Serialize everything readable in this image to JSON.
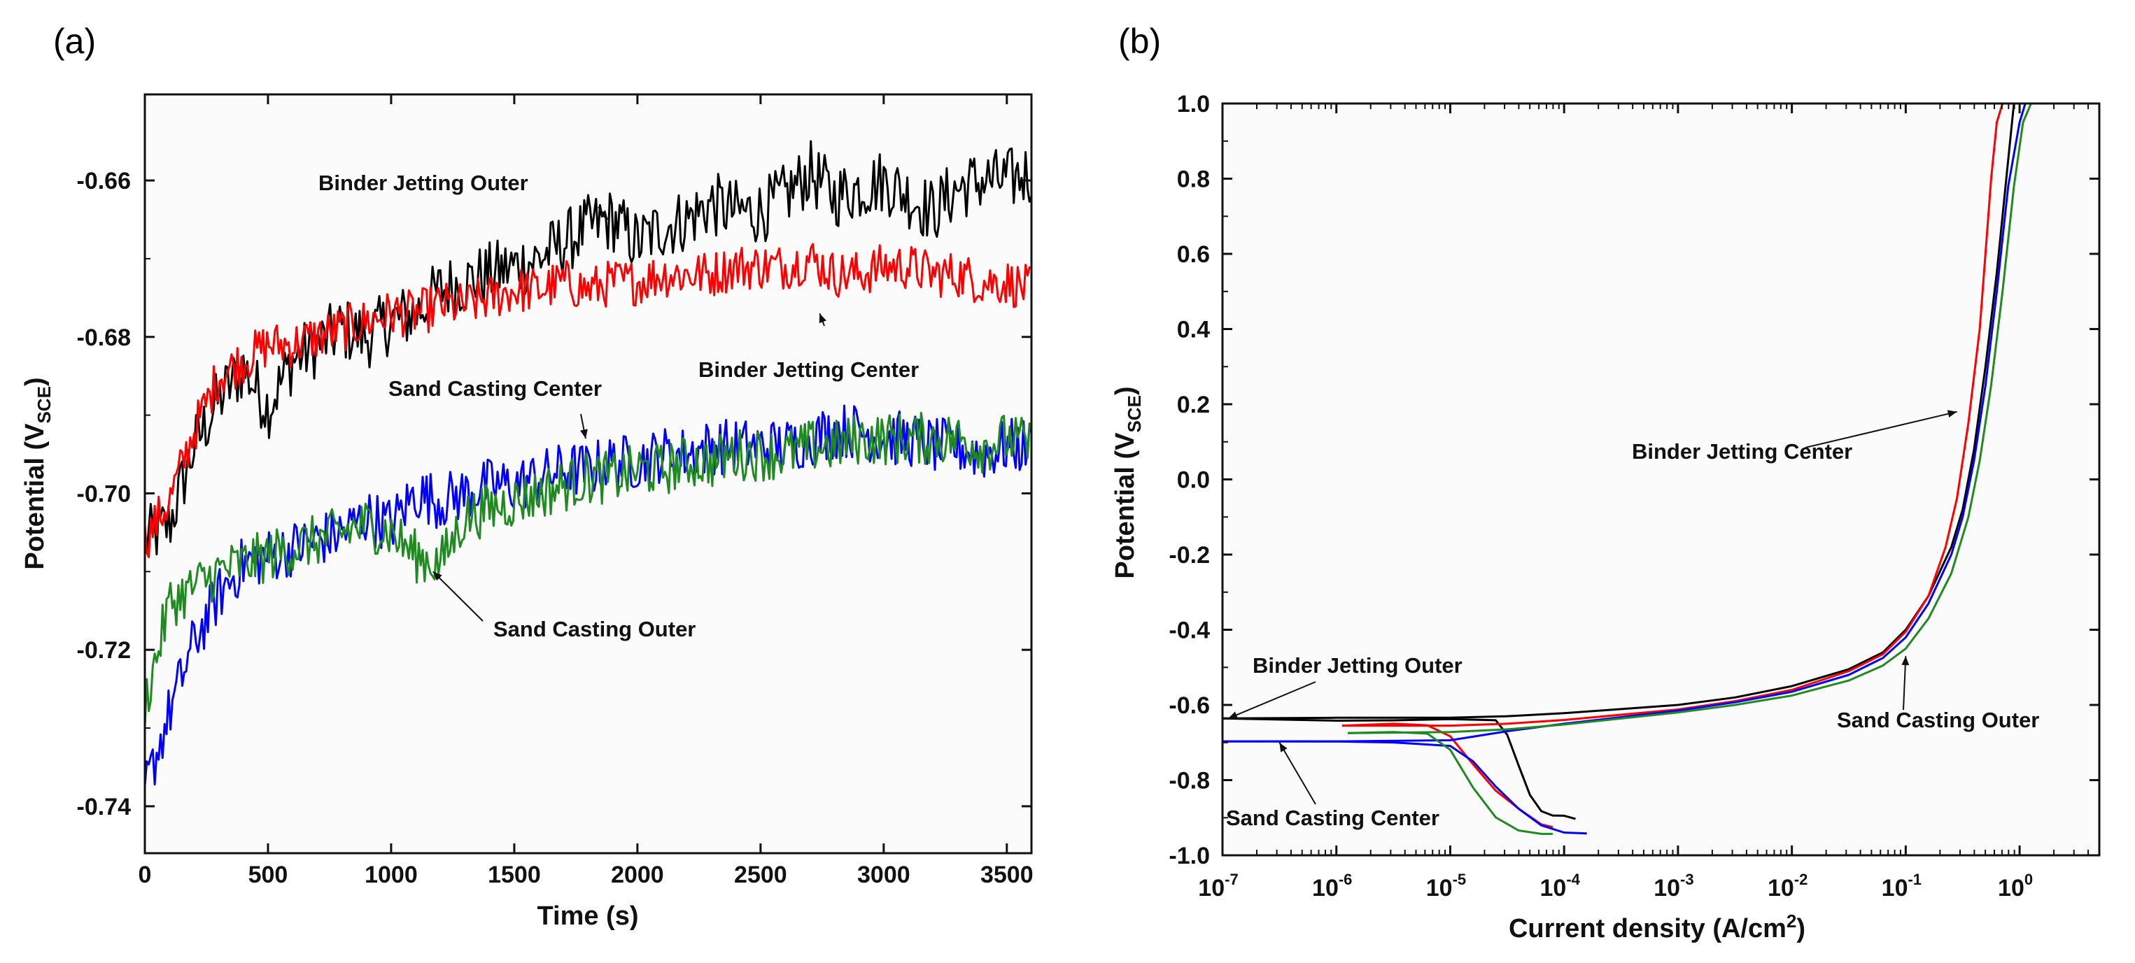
{
  "chart_data": [
    {
      "panel_label": "(a)",
      "type": "line",
      "title": "",
      "xlabel": "Time (s)",
      "ylabel_main": "Potential (V",
      "ylabel_sub": "SCE",
      "ylabel_end": ")",
      "xlim": [
        0,
        3600
      ],
      "ylim": [
        -0.746,
        -0.649
      ],
      "x_ticks": [
        0,
        500,
        1000,
        1500,
        2000,
        2500,
        3000,
        3500
      ],
      "x_tick_labels": [
        "0",
        "500",
        "1000",
        "1500",
        "2000",
        "2500",
        "3000",
        "3500"
      ],
      "y_ticks": [
        -0.74,
        -0.72,
        -0.7,
        -0.68,
        -0.66
      ],
      "y_tick_labels": [
        "-0.74",
        "-0.72",
        "-0.70",
        "-0.68",
        "-0.66"
      ],
      "grid": false,
      "series": [
        {
          "name": "Binder Jetting Outer",
          "color": "#000000",
          "x": [
            0,
            100,
            200,
            300,
            400,
            500,
            600,
            700,
            800,
            900,
            1000,
            1100,
            1200,
            1300,
            1400,
            1500,
            1600,
            1700,
            1800,
            1900,
            2000,
            2100,
            2200,
            2300,
            2400,
            2500,
            2600,
            2700,
            2800,
            2900,
            3000,
            3100,
            3200,
            3300,
            3400,
            3500,
            3600
          ],
          "y": [
            -0.706,
            -0.704,
            -0.694,
            -0.688,
            -0.684,
            -0.689,
            -0.683,
            -0.681,
            -0.679,
            -0.68,
            -0.678,
            -0.677,
            -0.674,
            -0.673,
            -0.672,
            -0.671,
            -0.67,
            -0.668,
            -0.666,
            -0.665,
            -0.668,
            -0.666,
            -0.665,
            -0.663,
            -0.664,
            -0.664,
            -0.662,
            -0.659,
            -0.662,
            -0.661,
            -0.66,
            -0.662,
            -0.664,
            -0.661,
            -0.66,
            -0.66,
            -0.659
          ]
        },
        {
          "name": "Binder Jetting Center",
          "color": "#ff0000",
          "x": [
            0,
            100,
            200,
            300,
            400,
            500,
            600,
            700,
            800,
            900,
            1000,
            1100,
            1200,
            1300,
            1400,
            1500,
            1600,
            1700,
            1800,
            1900,
            2000,
            2100,
            2200,
            2300,
            2400,
            2500,
            2600,
            2700,
            2800,
            2900,
            3000,
            3100,
            3200,
            3300,
            3400,
            3500,
            3600
          ],
          "y": [
            -0.706,
            -0.701,
            -0.692,
            -0.685,
            -0.683,
            -0.681,
            -0.681,
            -0.68,
            -0.679,
            -0.678,
            -0.677,
            -0.677,
            -0.676,
            -0.676,
            -0.675,
            -0.674,
            -0.674,
            -0.673,
            -0.674,
            -0.673,
            -0.673,
            -0.672,
            -0.672,
            -0.672,
            -0.671,
            -0.671,
            -0.671,
            -0.67,
            -0.672,
            -0.672,
            -0.671,
            -0.671,
            -0.672,
            -0.672,
            -0.673,
            -0.673,
            -0.674
          ]
        },
        {
          "name": "Sand Casting Center",
          "color": "#0000ff",
          "x": [
            0,
            100,
            200,
            300,
            400,
            500,
            600,
            700,
            800,
            900,
            1000,
            1100,
            1200,
            1300,
            1400,
            1500,
            1600,
            1700,
            1800,
            1900,
            2000,
            2100,
            2200,
            2300,
            2400,
            2500,
            2600,
            2700,
            2800,
            2900,
            3000,
            3100,
            3200,
            3300,
            3400,
            3500,
            3600
          ],
          "y": [
            -0.738,
            -0.728,
            -0.719,
            -0.713,
            -0.709,
            -0.708,
            -0.707,
            -0.706,
            -0.705,
            -0.703,
            -0.704,
            -0.7,
            -0.701,
            -0.7,
            -0.699,
            -0.699,
            -0.698,
            -0.697,
            -0.697,
            -0.696,
            -0.696,
            -0.695,
            -0.695,
            -0.694,
            -0.694,
            -0.694,
            -0.694,
            -0.693,
            -0.692,
            -0.692,
            -0.693,
            -0.693,
            -0.694,
            -0.694,
            -0.695,
            -0.694,
            -0.694
          ]
        },
        {
          "name": "Sand Casting Outer",
          "color": "#1f8a1f",
          "x": [
            0,
            100,
            200,
            300,
            400,
            500,
            600,
            700,
            800,
            900,
            1000,
            1100,
            1200,
            1300,
            1400,
            1500,
            1600,
            1700,
            1800,
            1900,
            2000,
            2100,
            2200,
            2300,
            2400,
            2500,
            2600,
            2700,
            2800,
            2900,
            3000,
            3100,
            3200,
            3300,
            3400,
            3500,
            3600
          ],
          "y": [
            -0.727,
            -0.714,
            -0.712,
            -0.71,
            -0.709,
            -0.708,
            -0.707,
            -0.706,
            -0.705,
            -0.704,
            -0.705,
            -0.708,
            -0.709,
            -0.703,
            -0.702,
            -0.701,
            -0.7,
            -0.699,
            -0.698,
            -0.698,
            -0.697,
            -0.697,
            -0.696,
            -0.696,
            -0.695,
            -0.695,
            -0.695,
            -0.694,
            -0.694,
            -0.693,
            -0.693,
            -0.693,
            -0.693,
            -0.693,
            -0.694,
            -0.693,
            -0.694
          ]
        }
      ],
      "annotations": [
        {
          "text": "Binder Jetting Outer",
          "series": "Binder Jetting Outer",
          "target": [
            1880,
            -0.665
          ]
        },
        {
          "text": "Binder Jetting Center",
          "series": "Binder Jetting Center",
          "target": [
            2740,
            -0.677
          ]
        },
        {
          "text": "Sand Casting Center",
          "series": "Sand Casting Center",
          "target": [
            1790,
            -0.693
          ]
        },
        {
          "text": "Sand Casting Outer",
          "series": "Sand Casting Outer",
          "target": [
            1170,
            -0.71
          ]
        }
      ]
    },
    {
      "panel_label": "(b)",
      "type": "line",
      "title": "",
      "xlabel_main": "Current density (A/cm",
      "xlabel_sup": "2",
      "xlabel_end": ")",
      "ylabel_main": "Potential (V",
      "ylabel_sub": "SCE",
      "ylabel_end": ")",
      "x_scale": "log10",
      "xlim_log10": [
        -7,
        0.7
      ],
      "ylim": [
        -1.0,
        1.0
      ],
      "x_ticks_log10": [
        -7,
        -6,
        -5,
        -4,
        -3,
        -2,
        -1,
        0
      ],
      "x_tick_labels": [
        {
          "base": "10",
          "exp": "-7"
        },
        {
          "base": "10",
          "exp": "-6"
        },
        {
          "base": "10",
          "exp": "-5"
        },
        {
          "base": "10",
          "exp": "-4"
        },
        {
          "base": "10",
          "exp": "-3"
        },
        {
          "base": "10",
          "exp": "-2"
        },
        {
          "base": "10",
          "exp": "-1"
        },
        {
          "base": "10",
          "exp": "0"
        }
      ],
      "y_ticks": [
        -1.0,
        -0.8,
        -0.6,
        -0.4,
        -0.2,
        0.0,
        0.2,
        0.4,
        0.6,
        0.8,
        1.0
      ],
      "y_tick_labels": [
        "-1.0",
        "-0.8",
        "-0.6",
        "-0.4",
        "-0.2",
        "0.0",
        "0.2",
        "0.4",
        "0.6",
        "0.8",
        "1.0"
      ],
      "grid": false,
      "series": [
        {
          "name": "Binder Jetting Outer",
          "color": "#000000",
          "x_log10": [
            -7.0,
            -6.0,
            -5.5,
            -5.0,
            -4.6,
            -4.5,
            -4.4,
            -4.3,
            -4.2,
            -4.1,
            -4.0,
            -3.9
          ],
          "y": [
            -0.636,
            -0.636,
            -0.636,
            -0.638,
            -0.645,
            -0.68,
            -0.76,
            -0.84,
            -0.88,
            -0.895,
            -0.9,
            -0.903
          ],
          "anodic_x_log10": [
            -7.0,
            -6.0,
            -5.0,
            -4.5,
            -4.0,
            -3.0,
            -2.5,
            -2.0,
            -1.5,
            -1.2,
            -1.0,
            -0.8,
            -0.6,
            -0.5,
            -0.4,
            -0.3,
            -0.2,
            -0.1,
            -0.05
          ],
          "anodic_y": [
            -0.636,
            -0.634,
            -0.634,
            -0.63,
            -0.622,
            -0.6,
            -0.58,
            -0.55,
            -0.505,
            -0.46,
            -0.4,
            -0.31,
            -0.18,
            -0.08,
            0.08,
            0.3,
            0.55,
            0.85,
            1.0
          ]
        },
        {
          "name": "Binder Jetting Center",
          "color": "#ff0000",
          "x_log10": [
            -5.95,
            -5.5,
            -5.2,
            -5.0,
            -4.8,
            -4.6,
            -4.4,
            -4.2,
            -4.1
          ],
          "y": [
            -0.655,
            -0.655,
            -0.658,
            -0.68,
            -0.76,
            -0.83,
            -0.88,
            -0.915,
            -0.925
          ],
          "anodic_x_log10": [
            -5.95,
            -5.0,
            -4.5,
            -4.0,
            -3.0,
            -2.5,
            -2.0,
            -1.5,
            -1.2,
            -1.0,
            -0.8,
            -0.65,
            -0.55,
            -0.45,
            -0.35,
            -0.3,
            -0.25,
            -0.2,
            -0.15
          ],
          "anodic_y": [
            -0.655,
            -0.655,
            -0.65,
            -0.64,
            -0.612,
            -0.59,
            -0.56,
            -0.51,
            -0.465,
            -0.405,
            -0.31,
            -0.18,
            -0.05,
            0.15,
            0.4,
            0.6,
            0.8,
            0.95,
            1.0
          ]
        },
        {
          "name": "Sand Casting Center",
          "color": "#0000ff",
          "x_log10": [
            -7.0,
            -6.0,
            -5.5,
            -5.0,
            -4.8,
            -4.6,
            -4.4,
            -4.2,
            -4.0,
            -3.8
          ],
          "y": [
            -0.697,
            -0.697,
            -0.7,
            -0.71,
            -0.75,
            -0.82,
            -0.88,
            -0.915,
            -0.935,
            -0.942
          ],
          "anodic_x_log10": [
            -7.0,
            -6.0,
            -5.0,
            -4.5,
            -4.0,
            -3.0,
            -2.5,
            -2.0,
            -1.5,
            -1.2,
            -1.0,
            -0.8,
            -0.6,
            -0.5,
            -0.4,
            -0.3,
            -0.2,
            -0.1,
            0.0,
            0.05
          ],
          "anodic_y": [
            -0.697,
            -0.697,
            -0.694,
            -0.67,
            -0.65,
            -0.615,
            -0.593,
            -0.565,
            -0.52,
            -0.475,
            -0.42,
            -0.33,
            -0.2,
            -0.1,
            0.05,
            0.25,
            0.5,
            0.78,
            0.95,
            1.0
          ]
        },
        {
          "name": "Sand Casting Outer",
          "color": "#1f8a1f",
          "x_log10": [
            -5.9,
            -5.5,
            -5.2,
            -5.0,
            -4.8,
            -4.6,
            -4.4,
            -4.2,
            -4.1
          ],
          "y": [
            -0.675,
            -0.675,
            -0.68,
            -0.72,
            -0.82,
            -0.9,
            -0.93,
            -0.94,
            -0.943
          ],
          "anodic_x_log10": [
            -5.9,
            -5.0,
            -4.5,
            -4.0,
            -3.0,
            -2.5,
            -2.0,
            -1.5,
            -1.2,
            -1.0,
            -0.8,
            -0.6,
            -0.45,
            -0.35,
            -0.25,
            -0.15,
            -0.05,
            0.03,
            0.1
          ],
          "anodic_y": [
            -0.675,
            -0.672,
            -0.665,
            -0.652,
            -0.62,
            -0.6,
            -0.575,
            -0.535,
            -0.495,
            -0.45,
            -0.37,
            -0.25,
            -0.1,
            0.05,
            0.25,
            0.5,
            0.78,
            0.95,
            1.0
          ]
        }
      ],
      "annotations": [
        {
          "text": "Binder Jetting Outer",
          "series": "Binder Jetting Outer",
          "target": [
            -6.95,
            -0.636
          ]
        },
        {
          "text": "Binder Jetting Center",
          "series": "Binder Jetting Center",
          "target": [
            -0.55,
            0.18
          ]
        },
        {
          "text": "Sand Casting Center",
          "series": "Sand Casting Center",
          "target": [
            -6.5,
            -0.7
          ]
        },
        {
          "text": "Sand Casting Outer",
          "series": "Sand Casting Outer",
          "target": [
            -1.0,
            -0.47
          ]
        }
      ]
    }
  ]
}
